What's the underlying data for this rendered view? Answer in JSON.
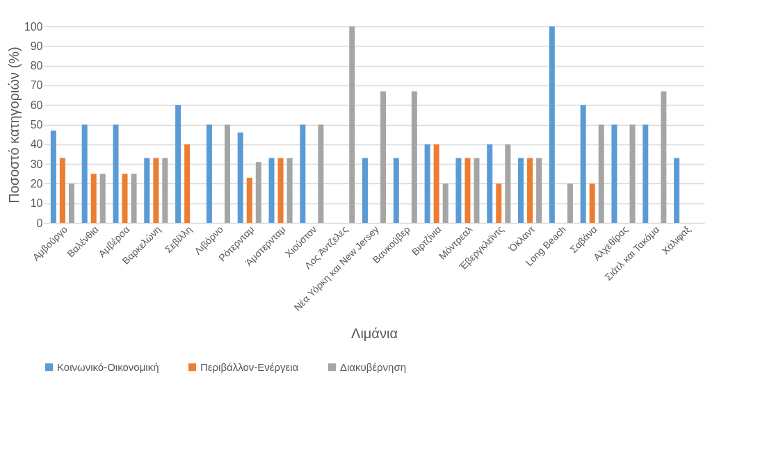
{
  "chart_data": {
    "type": "bar",
    "xlabel": "Λιμάνια",
    "ylabel": "Ποσοστό κατηγοριών (%)",
    "categories": [
      "Αμβούργο",
      "Βαλένθια",
      "Αμβέρσα",
      "Βαρκελώνη",
      "Σεβίλλη",
      "Λιβόρνο",
      "Ρότερνταμ",
      "Άμστερνταμ",
      "Χιούστον",
      "Λος Άντζελες",
      "Νέα Υόρκη και New Jersey",
      "Βανκούβερ",
      "Βιρτζίνια",
      "Μόντρεαλ",
      "Έβεργκλεϊντς",
      "Όκλαντ",
      "Long Beach",
      "Σαβάνα",
      "Αλχεθίρας",
      "Σιάτλ και Τακόμα",
      "Χάλιφαξ"
    ],
    "series": [
      {
        "name": "Κοινωνικό-Οικονομική",
        "color": "#5b9bd5",
        "values": [
          47,
          50,
          50,
          33,
          60,
          50,
          46,
          33,
          50,
          null,
          33,
          33,
          40,
          33,
          40,
          33,
          100,
          60,
          50,
          50,
          33
        ]
      },
      {
        "name": "Περιβάλλον-Ενέργεια",
        "color": "#ed7d31",
        "values": [
          33,
          25,
          25,
          33,
          40,
          null,
          23,
          33,
          null,
          null,
          null,
          null,
          40,
          33,
          20,
          33,
          null,
          20,
          null,
          null,
          null
        ]
      },
      {
        "name": "Διακυβέρνηση",
        "color": "#a5a5a5",
        "values": [
          20,
          25,
          25,
          33,
          null,
          50,
          31,
          33,
          50,
          100,
          67,
          67,
          20,
          33,
          40,
          33,
          20,
          50,
          50,
          67,
          null
        ]
      }
    ],
    "ylim": [
      0,
      100
    ],
    "yticks": [
      0,
      10,
      20,
      30,
      40,
      50,
      60,
      70,
      80,
      90,
      100
    ],
    "grid": "y",
    "legend": "bottom"
  }
}
